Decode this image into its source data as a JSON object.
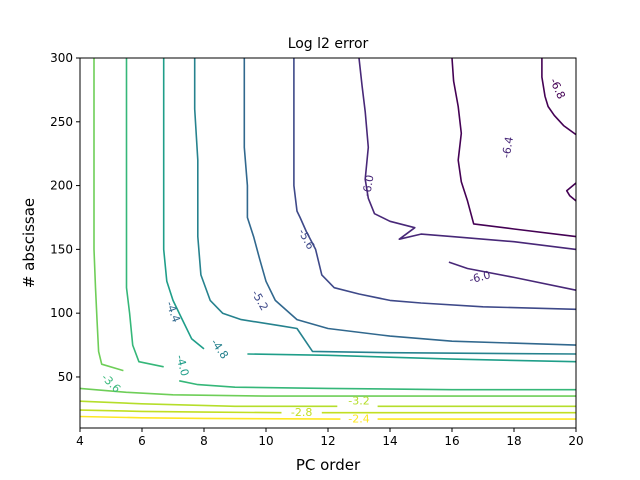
{
  "chart_data": {
    "type": "contour",
    "title": "Log l2 error",
    "xlabel": "PC order",
    "ylabel": "# abscissae",
    "xlim": [
      4,
      20
    ],
    "ylim": [
      10,
      300
    ],
    "xticks": [
      "4",
      "6",
      "8",
      "10",
      "12",
      "14",
      "16",
      "18",
      "20"
    ],
    "yticks": [
      "50",
      "100",
      "150",
      "200",
      "250",
      "300"
    ],
    "grid": false,
    "colormap": "viridis",
    "levels": [
      {
        "value": -6.8,
        "label": "-6.8",
        "color": "#440154",
        "paths": [
          [
            [
              16.0,
              300
            ],
            [
              16.05,
              282
            ],
            [
              16.2,
              262
            ],
            [
              16.3,
              241
            ],
            [
              16.2,
              220
            ],
            [
              16.3,
              203
            ],
            [
              16.5,
              188
            ],
            [
              16.7,
              170
            ],
            [
              18,
              166
            ],
            [
              20,
              160
            ]
          ],
          [
            [
              18.9,
              300
            ],
            [
              18.9,
              285
            ],
            [
              19.0,
              270
            ],
            [
              19.1,
              262
            ],
            [
              19.3,
              255
            ],
            [
              19.6,
              247
            ],
            [
              20,
              240
            ]
          ],
          [
            [
              20,
              202
            ],
            [
              19.7,
              196
            ],
            [
              19.8,
              192
            ],
            [
              20,
              188
            ]
          ]
        ],
        "labels": [
          {
            "x": 19.4,
            "y": 276,
            "text": "-6.8",
            "rot": 65
          }
        ]
      },
      {
        "value": -6.4,
        "label": "-6.4",
        "color": "#482878",
        "paths": [
          [
            [
              13.0,
              300
            ],
            [
              13.1,
              278
            ],
            [
              13.2,
              258
            ],
            [
              13.3,
              230
            ],
            [
              13.2,
              205
            ],
            [
              13.3,
              190
            ],
            [
              13.5,
              178
            ],
            [
              14,
              172
            ],
            [
              14.8,
              167
            ],
            [
              14.3,
              158
            ],
            [
              15,
              162
            ],
            [
              16,
              160
            ],
            [
              18,
              156
            ],
            [
              20,
              150
            ]
          ],
          [
            [
              15.9,
              140
            ],
            [
              16.5,
              135
            ],
            [
              18,
              128
            ],
            [
              20,
              118
            ]
          ]
        ],
        "labels": [
          {
            "x": 17.8,
            "y": 230,
            "text": "-6.4",
            "rot": -80
          },
          {
            "x": 13.3,
            "y": 200,
            "text": "-6.0",
            "rot": -80
          },
          {
            "x": 16.9,
            "y": 128,
            "text": "-6.0",
            "rot": -15
          }
        ]
      },
      {
        "value": -6.0,
        "label": "-6.0",
        "color": "#3e4989",
        "paths": [
          [
            [
              10.9,
              300
            ],
            [
              10.9,
              270
            ],
            [
              10.9,
              240
            ],
            [
              10.9,
              200
            ],
            [
              11.0,
              180
            ],
            [
              11.1,
              175
            ],
            [
              11.3,
              164
            ],
            [
              11.6,
              150
            ],
            [
              11.8,
              130
            ],
            [
              12.2,
              120
            ],
            [
              13,
              115
            ],
            [
              14,
              110
            ],
            [
              15,
              108
            ],
            [
              17,
              105
            ],
            [
              20,
              103
            ]
          ]
        ],
        "labels": [
          {
            "x": 11.3,
            "y": 158,
            "text": "-5.6",
            "rot": 62
          },
          {
            "x": 9.8,
            "y": 110,
            "text": "-5.2",
            "rot": 60
          }
        ]
      },
      {
        "value": -5.6,
        "label": "-5.6",
        "color": "#31688e",
        "paths": [
          [
            [
              9.3,
              300
            ],
            [
              9.3,
              270
            ],
            [
              9.3,
              230
            ],
            [
              9.4,
              200
            ],
            [
              9.4,
              175
            ],
            [
              9.6,
              160
            ],
            [
              9.8,
              142
            ],
            [
              10.0,
              125
            ],
            [
              10.3,
              110
            ],
            [
              11.0,
              95
            ],
            [
              12,
              88
            ],
            [
              14,
              82
            ],
            [
              16,
              78
            ],
            [
              20,
              75
            ]
          ]
        ],
        "labels": [
          {
            "x": 7.0,
            "y": 101,
            "text": "-4.4",
            "rot": 70
          }
        ]
      },
      {
        "value": -5.2,
        "label": "-5.2",
        "color": "#26828e",
        "paths": [
          [
            [
              7.7,
              300
            ],
            [
              7.7,
              260
            ],
            [
              7.8,
              220
            ],
            [
              7.8,
              160
            ],
            [
              7.9,
              130
            ],
            [
              8.2,
              110
            ],
            [
              8.6,
              100
            ],
            [
              9.2,
              95
            ],
            [
              10.5,
              90
            ],
            [
              11,
              88
            ],
            [
              11.5,
              70
            ],
            [
              14,
              69
            ],
            [
              20,
              68
            ]
          ]
        ],
        "labels": [
          {
            "x": 8.5,
            "y": 72,
            "text": "-4.8",
            "rot": 55
          }
        ]
      },
      {
        "value": -4.8,
        "label": "-4.8",
        "color": "#1f9e89",
        "paths": [
          [
            [
              6.7,
              300
            ],
            [
              6.7,
              260
            ],
            [
              6.7,
              200
            ],
            [
              6.7,
              150
            ],
            [
              6.8,
              125
            ],
            [
              7.0,
              110
            ],
            [
              7.3,
              95
            ],
            [
              7.6,
              80
            ],
            [
              8.0,
              72
            ]
          ],
          [
            [
              9.4,
              68
            ],
            [
              12,
              67
            ],
            [
              16,
              64
            ],
            [
              20,
              62
            ]
          ]
        ],
        "labels": [
          {
            "x": 7.3,
            "y": 59,
            "text": "-4.0",
            "rot": 75
          }
        ]
      },
      {
        "value": -4.4,
        "label": "-4.4",
        "color": "#35b779",
        "paths": [
          [
            [
              5.5,
              300
            ],
            [
              5.5,
              250
            ],
            [
              5.5,
              200
            ],
            [
              5.5,
              150
            ],
            [
              5.5,
              120
            ],
            [
              5.6,
              100
            ],
            [
              5.7,
              75
            ],
            [
              5.9,
              62
            ],
            [
              6.7,
              58
            ]
          ],
          [
            [
              7.2,
              47
            ],
            [
              7.8,
              44
            ],
            [
              9,
              42
            ],
            [
              12,
              41
            ],
            [
              16,
              40
            ],
            [
              20,
              40
            ]
          ]
        ],
        "labels": [
          {
            "x": 5.0,
            "y": 45,
            "text": "-3.6",
            "rot": 45
          }
        ]
      },
      {
        "value": -4.0,
        "label": "-4.0",
        "color": "#6ece58",
        "paths": [
          [
            [
              4.45,
              300
            ],
            [
              4.45,
              250
            ],
            [
              4.45,
              200
            ],
            [
              4.45,
              150
            ],
            [
              4.5,
              120
            ],
            [
              4.55,
              95
            ],
            [
              4.6,
              70
            ],
            [
              4.7,
              60
            ],
            [
              5.4,
              55
            ]
          ],
          [
            [
              4.0,
              41
            ],
            [
              5.5,
              38
            ],
            [
              7,
              36
            ],
            [
              10,
              35
            ],
            [
              14,
              35
            ],
            [
              20,
              35
            ]
          ]
        ]
      },
      {
        "value": -3.2,
        "label": "-3.2",
        "color": "#b5de2b",
        "paths": [
          [
            [
              4.0,
              31
            ],
            [
              6,
              29
            ],
            [
              9,
              27
            ],
            [
              12.3,
              27
            ]
          ],
          [
            [
              13.6,
              27
            ],
            [
              16,
              27
            ],
            [
              20,
              27
            ]
          ]
        ],
        "labels": [
          {
            "x": 13.0,
            "y": 31,
            "text": "-3.2",
            "rot": 0
          }
        ]
      },
      {
        "value": -2.8,
        "label": "-2.8",
        "color": "#c2df23",
        "paths": [
          [
            [
              4.0,
              24
            ],
            [
              6,
              23
            ],
            [
              8,
              22.5
            ],
            [
              10.5,
              22
            ]
          ],
          [
            [
              11.8,
              22
            ],
            [
              16,
              22
            ],
            [
              20,
              22
            ]
          ]
        ],
        "labels": [
          {
            "x": 11.15,
            "y": 22,
            "text": "-2.8",
            "rot": 0
          }
        ]
      },
      {
        "value": -2.4,
        "label": "-2.4",
        "color": "#fde725",
        "paths": [
          [
            [
              4.0,
              19
            ],
            [
              6,
              18
            ],
            [
              8,
              17.5
            ],
            [
              12.4,
              17
            ]
          ],
          [
            [
              13.6,
              17
            ],
            [
              16,
              17
            ],
            [
              20,
              17
            ]
          ]
        ],
        "labels": [
          {
            "x": 13.0,
            "y": 17,
            "text": "-2.4",
            "rot": 0
          }
        ]
      }
    ]
  }
}
